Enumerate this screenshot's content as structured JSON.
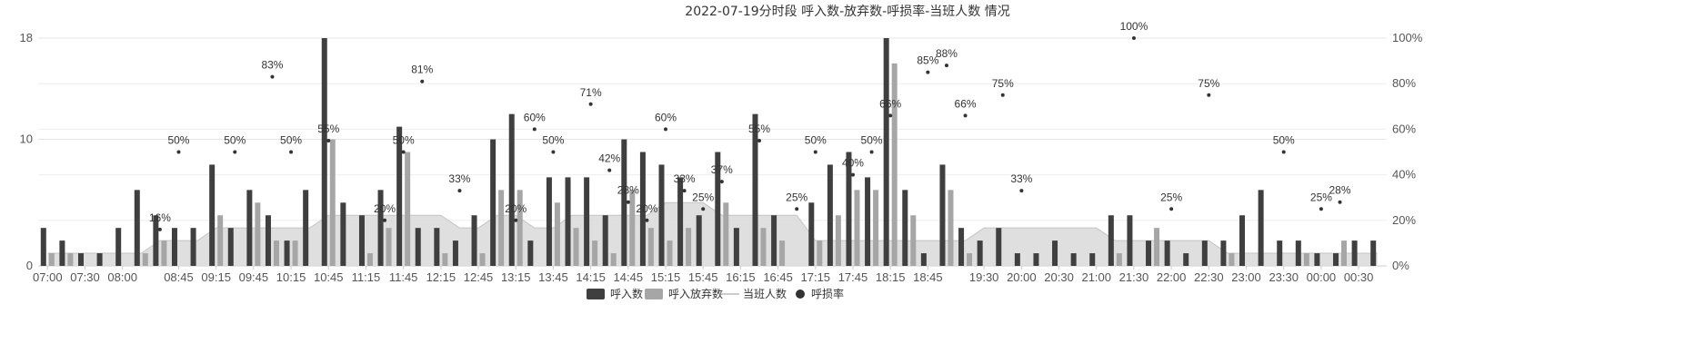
{
  "chart_data": {
    "type": "bar",
    "title": "2022-07-19分时段 呼入数-放弃数-呼损率-当班人数 情况",
    "x": [
      "07:00",
      "07:15",
      "07:30",
      "07:45",
      "08:00",
      "08:15",
      "08:30",
      "08:45",
      "09:00",
      "09:15",
      "09:30",
      "09:45",
      "10:00",
      "10:15",
      "10:30",
      "10:45",
      "11:00",
      "11:15",
      "11:30",
      "11:45",
      "12:00",
      "12:15",
      "12:30",
      "12:45",
      "13:00",
      "13:15",
      "13:30",
      "13:45",
      "14:00",
      "14:15",
      "14:30",
      "14:45",
      "15:00",
      "15:15",
      "15:30",
      "15:45",
      "16:00",
      "16:15",
      "16:30",
      "16:45",
      "17:00",
      "17:15",
      "17:30",
      "17:45",
      "18:00",
      "18:15",
      "18:30",
      "18:45",
      "19:00",
      "19:15",
      "19:30",
      "19:45",
      "20:00",
      "20:15",
      "20:30",
      "20:45",
      "21:00",
      "21:15",
      "21:30",
      "21:45",
      "22:00",
      "22:15",
      "22:30",
      "22:45",
      "23:00",
      "23:15",
      "23:30",
      "23:45",
      "00:00",
      "00:15",
      "00:30",
      "00:45"
    ],
    "x_tick_labels": [
      "07:00",
      "07:30",
      "08:00",
      "08:45",
      "09:15",
      "09:45",
      "10:15",
      "10:45",
      "11:15",
      "11:45",
      "12:15",
      "12:45",
      "13:15",
      "13:45",
      "14:15",
      "14:45",
      "15:15",
      "15:45",
      "16:15",
      "16:45",
      "17:15",
      "17:45",
      "18:15",
      "18:45",
      "19:30",
      "20:00",
      "20:30",
      "21:00",
      "21:30",
      "22:00",
      "22:30",
      "23:00",
      "23:30",
      "00:00",
      "00:30"
    ],
    "y_left": {
      "min": 0,
      "max": 18,
      "ticks": [
        0,
        10,
        18
      ]
    },
    "y_right": {
      "min": 0,
      "max": 100,
      "ticks": [
        "0%",
        "20%",
        "40%",
        "60%",
        "80%",
        "100%"
      ]
    },
    "grid": true,
    "legend_position": "bottom-center",
    "series": [
      {
        "name": "呼入数",
        "type": "bar",
        "color": "#3f3f3f",
        "values": [
          3,
          2,
          1,
          1,
          3,
          6,
          4,
          3,
          3,
          8,
          3,
          6,
          4,
          2,
          6,
          18,
          5,
          4,
          6,
          11,
          3,
          3,
          2,
          4,
          10,
          12,
          2,
          7,
          7,
          7,
          4,
          10,
          9,
          8,
          7,
          4,
          9,
          3,
          12,
          4,
          0,
          5,
          8,
          9,
          7,
          18,
          6,
          1,
          8,
          3,
          2,
          3,
          1,
          1,
          2,
          1,
          1,
          4,
          4,
          2,
          2,
          1,
          2,
          2,
          4,
          6,
          2,
          2,
          1,
          1,
          2,
          2
        ]
      },
      {
        "name": "呼入放弃数",
        "type": "bar",
        "color": "#a6a6a6",
        "values": [
          1,
          1,
          0,
          0,
          0,
          1,
          2,
          0,
          0,
          4,
          0,
          5,
          2,
          2,
          0,
          10,
          0,
          1,
          3,
          9,
          0,
          1,
          0,
          1,
          6,
          6,
          0,
          5,
          3,
          2,
          1,
          6,
          3,
          2,
          3,
          0,
          5,
          0,
          3,
          2,
          0,
          2,
          4,
          6,
          6,
          16,
          4,
          0,
          6,
          1,
          0,
          0,
          0,
          0,
          0,
          0,
          0,
          1,
          0,
          3,
          0,
          0,
          0,
          1,
          0,
          0,
          0,
          1,
          0,
          2,
          0,
          0
        ]
      },
      {
        "name": "当班人数",
        "type": "area",
        "color": "#bdbdbd",
        "values": [
          1,
          1,
          1,
          1,
          1,
          1,
          2,
          2,
          2,
          3,
          3,
          3,
          3,
          3,
          3,
          4,
          4,
          4,
          4,
          4,
          4,
          4,
          3,
          3,
          4,
          4,
          3,
          3,
          4,
          4,
          4,
          4,
          4,
          5,
          5,
          5,
          4,
          4,
          4,
          4,
          4,
          2,
          2,
          2,
          2,
          2,
          2,
          2,
          2,
          2,
          3,
          3,
          3,
          3,
          3,
          3,
          3,
          2,
          2,
          2,
          2,
          2,
          2,
          1,
          1,
          1,
          1,
          1,
          1,
          1,
          1,
          1
        ]
      },
      {
        "name": "呼损率",
        "type": "scatter",
        "color": "#333333",
        "points": [
          {
            "x": "08:30",
            "value": 16,
            "label": "16%"
          },
          {
            "x": "08:45",
            "value": 50,
            "label": "50%"
          },
          {
            "x": "09:30",
            "value": 50,
            "label": "50%"
          },
          {
            "x": "10:00",
            "value": 83,
            "label": "83%"
          },
          {
            "x": "10:15",
            "value": 50,
            "label": "50%"
          },
          {
            "x": "10:45",
            "value": 55,
            "label": "55%"
          },
          {
            "x": "11:30",
            "value": 20,
            "label": "20%"
          },
          {
            "x": "11:45",
            "value": 50,
            "label": "50%"
          },
          {
            "x": "12:00",
            "value": 81,
            "label": "81%"
          },
          {
            "x": "12:30",
            "value": 33,
            "label": "33%"
          },
          {
            "x": "13:15",
            "value": 20,
            "label": "20%"
          },
          {
            "x": "13:30",
            "value": 60,
            "label": "60%"
          },
          {
            "x": "13:45",
            "value": 50,
            "label": "50%"
          },
          {
            "x": "14:15",
            "value": 71,
            "label": "71%"
          },
          {
            "x": "14:30",
            "value": 42,
            "label": "42%"
          },
          {
            "x": "14:45",
            "value": 28,
            "label": "28%"
          },
          {
            "x": "15:00",
            "value": 20,
            "label": "20%"
          },
          {
            "x": "15:15",
            "value": 60,
            "label": "60%"
          },
          {
            "x": "15:30",
            "value": 33,
            "label": "33%"
          },
          {
            "x": "15:45",
            "value": 25,
            "label": "25%"
          },
          {
            "x": "16:00",
            "value": 37,
            "label": "37%"
          },
          {
            "x": "16:30",
            "value": 55,
            "label": "55%"
          },
          {
            "x": "17:00",
            "value": 25,
            "label": "25%"
          },
          {
            "x": "17:15",
            "value": 50,
            "label": "50%"
          },
          {
            "x": "17:45",
            "value": 40,
            "label": "40%"
          },
          {
            "x": "18:00",
            "value": 50,
            "label": "50%"
          },
          {
            "x": "18:15",
            "value": 66,
            "label": "66%"
          },
          {
            "x": "18:45",
            "value": 85,
            "label": "85%"
          },
          {
            "x": "19:00",
            "value": 88,
            "label": "88%"
          },
          {
            "x": "19:15",
            "value": 66,
            "label": "66%"
          },
          {
            "x": "19:45",
            "value": 75,
            "label": "75%"
          },
          {
            "x": "20:00",
            "value": 33,
            "label": "33%"
          },
          {
            "x": "21:30",
            "value": 100,
            "label": "100%"
          },
          {
            "x": "22:00",
            "value": 25,
            "label": "25%"
          },
          {
            "x": "22:30",
            "value": 75,
            "label": "75%"
          },
          {
            "x": "23:30",
            "value": 50,
            "label": "50%"
          },
          {
            "x": "00:00",
            "value": 25,
            "label": "25%"
          },
          {
            "x": "00:15",
            "value": 28,
            "label": "28%"
          }
        ]
      }
    ]
  }
}
